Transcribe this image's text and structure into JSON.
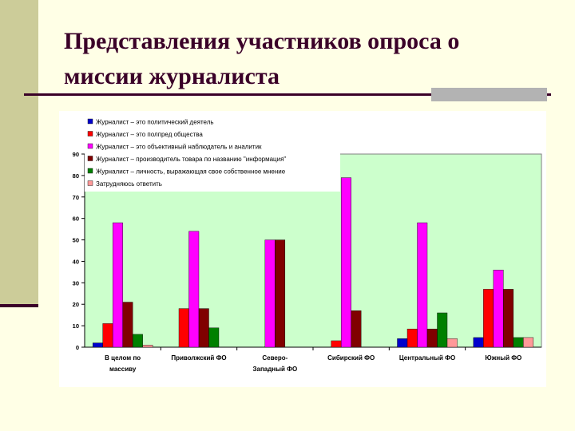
{
  "slide": {
    "title_line1": "Представления участников опроса о",
    "title_line2": "миссии журналиста"
  },
  "chart_data": {
    "type": "bar",
    "title": "",
    "xlabel": "",
    "ylabel": "",
    "ylim": [
      0,
      90
    ],
    "yticks": [
      0,
      10,
      20,
      30,
      40,
      50,
      60,
      70,
      80,
      90
    ],
    "grid": false,
    "legend_position": "top-left",
    "plot_background": "#ccffcc",
    "categories": [
      [
        "В целом по",
        "массиву"
      ],
      [
        "Приволжский ФО"
      ],
      [
        "Северо-",
        "Западный ФО"
      ],
      [
        "Сибирский ФО"
      ],
      [
        "Центральный ФО"
      ],
      [
        "Южный ФО"
      ]
    ],
    "series": [
      {
        "name": "Журналист – это политический деятель",
        "color": "#0000cc",
        "values": [
          2,
          0,
          0,
          0,
          4,
          4.5
        ]
      },
      {
        "name": "Журналист – это полпред общества",
        "color": "#ff0000",
        "values": [
          11,
          18,
          0,
          3,
          8.5,
          27
        ]
      },
      {
        "name": "Журналист – это объективный наблюдатель и аналитик",
        "color": "#ff00ff",
        "values": [
          58,
          54,
          50,
          79,
          58,
          36
        ]
      },
      {
        "name": "Журналист – производитель товара по названию \"информация\"",
        "color": "#800000",
        "values": [
          21,
          18,
          50,
          17,
          8.5,
          27
        ]
      },
      {
        "name": "Журналист – личность, выражающая свое собственное мнение",
        "color": "#008000",
        "values": [
          6,
          9,
          0,
          0,
          16,
          4.5
        ]
      },
      {
        "name": "Затрудняюсь ответить",
        "color": "#ff9999",
        "values": [
          1,
          0,
          0,
          0,
          4,
          4.5
        ]
      }
    ]
  }
}
